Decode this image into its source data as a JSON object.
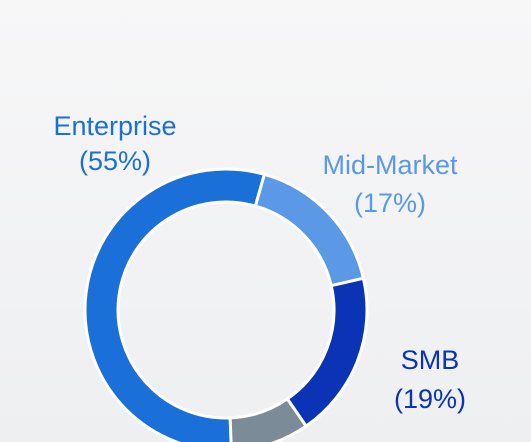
{
  "chart_data": {
    "type": "donut",
    "categories": [
      "Enterprise",
      "Mid-Market",
      "SMB",
      null
    ],
    "values": [
      55,
      17,
      19,
      9
    ],
    "value_labels": [
      "(55%)",
      "(17%)",
      "(19%)",
      null
    ],
    "colors": [
      "#1a6fd8",
      "#5b98e6",
      "#0b33b5",
      "#7b8b97"
    ]
  }
}
